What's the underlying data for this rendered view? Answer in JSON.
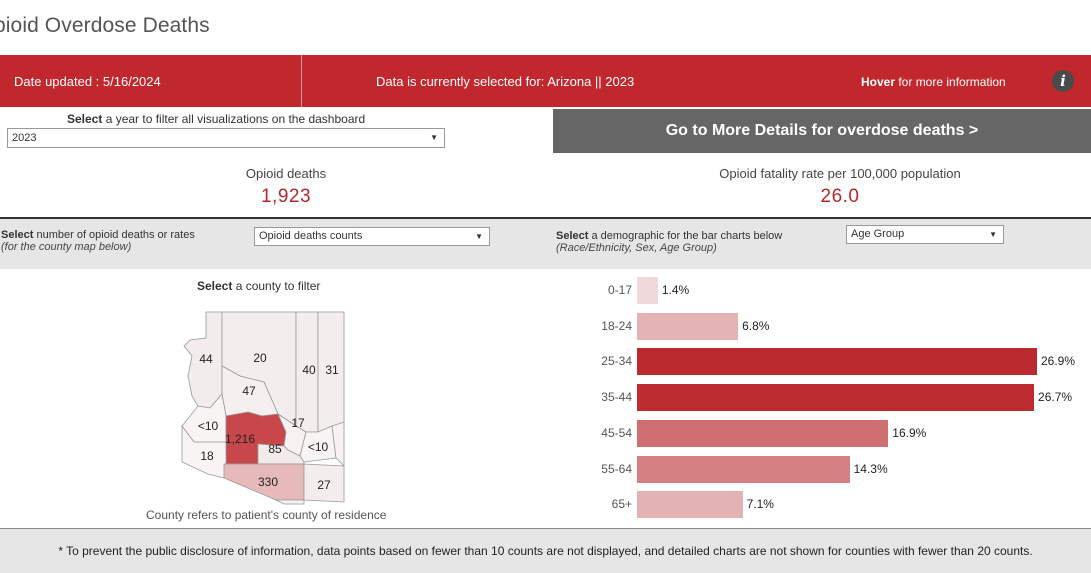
{
  "page": {
    "title": "pioid Overdose Deaths"
  },
  "banner": {
    "date_updated": "Date updated : 5/16/2024",
    "selection": "Data is currently selected for: Arizona || 2023",
    "hover_bold": "Hover",
    "hover_rest": " for more information",
    "info_glyph": "i",
    "color": "#c0282d"
  },
  "year_filter": {
    "label_bold": "Select",
    "label_rest": " a year to filter all visualizations on the dashboard",
    "value": "2023",
    "arrow": "▼"
  },
  "details_button": {
    "label": "Go to More Details for overdose deaths >"
  },
  "kpis": {
    "deaths": {
      "label": "Opioid deaths",
      "value": "1,923"
    },
    "rate": {
      "label": "Opioid fatality rate per 100,000 population",
      "value": "26.0"
    }
  },
  "measure_filter": {
    "label_bold": "Select",
    "label_rest": " number of opioid deaths  or rates",
    "label_sub": "(for the county map below)",
    "value": "Opioid deaths counts",
    "arrow": "▼"
  },
  "demo_filter": {
    "label_bold": "Select",
    "label_rest": " a demographic for the bar charts below",
    "label_sub": "(Race/Ethnicity, Sex, Age Group)",
    "value": "Age Group",
    "arrow": "▼"
  },
  "map": {
    "title_bold": "Select",
    "title_rest": " a county to filter",
    "note": "County refers to patient's county of residence",
    "counties": [
      {
        "name": "mohave-county",
        "label": "44",
        "value": 44
      },
      {
        "name": "coconino-county",
        "label": "20",
        "value": 20
      },
      {
        "name": "navajo-county",
        "label": "40",
        "value": 40
      },
      {
        "name": "apache-county",
        "label": "31",
        "value": 31
      },
      {
        "name": "yavapai-county",
        "label": "47",
        "value": 47
      },
      {
        "name": "la-paz-county",
        "label": "<10",
        "value": null
      },
      {
        "name": "maricopa-county",
        "label": "1,216",
        "value": 1216
      },
      {
        "name": "gila-county",
        "label": "17",
        "value": 17
      },
      {
        "name": "greenlee-county",
        "label": "<10",
        "value": null
      },
      {
        "name": "yuma-county",
        "label": "18",
        "value": 18
      },
      {
        "name": "pinal-county",
        "label": "85",
        "value": 85
      },
      {
        "name": "pima-county",
        "label": "330",
        "value": 330
      },
      {
        "name": "cochise-county",
        "label": "27",
        "value": 27
      },
      {
        "name": "graham-county",
        "label": "",
        "value": null
      },
      {
        "name": "santa-cruz-county",
        "label": "",
        "value": null
      }
    ]
  },
  "chart_data": {
    "type": "bar",
    "orientation": "horizontal",
    "categories": [
      "0-17",
      "18-24",
      "25-34",
      "35-44",
      "45-54",
      "55-64",
      "65+"
    ],
    "values": [
      1.4,
      6.8,
      26.9,
      26.7,
      16.9,
      14.3,
      7.1
    ],
    "value_labels": [
      "1.4%",
      "6.8%",
      "26.9%",
      "26.7%",
      "16.9%",
      "14.3%",
      "7.1%"
    ],
    "xlim": [
      0,
      26.9
    ],
    "colors": {
      "low": "#f2e3e3",
      "high": "#bb2a2f"
    }
  },
  "footer": {
    "text": "* To prevent the public disclosure of information, data points based on fewer than 10 counts are not displayed, and detailed charts are not shown for counties with fewer than 20 counts."
  }
}
